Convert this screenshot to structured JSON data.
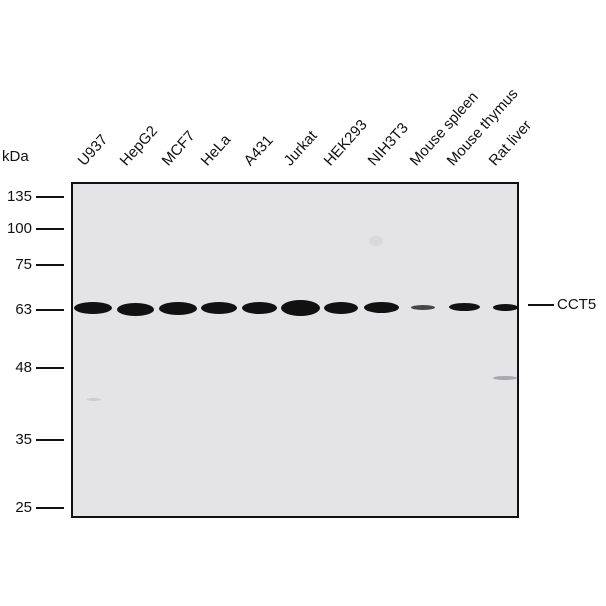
{
  "figure": {
    "unit_label": "kDa",
    "target_label": "CCT5"
  },
  "markers": [
    {
      "value": "135",
      "kda": 135
    },
    {
      "value": "100",
      "kda": 100
    },
    {
      "value": "75",
      "kda": 75
    },
    {
      "value": "63",
      "kda": 63
    },
    {
      "value": "48",
      "kda": 48
    },
    {
      "value": "35",
      "kda": 35
    },
    {
      "value": "25",
      "kda": 25
    }
  ],
  "lanes": [
    {
      "label": "U937",
      "band_intensity": 1.0
    },
    {
      "label": "HepG2",
      "band_intensity": 1.0
    },
    {
      "label": "MCF7",
      "band_intensity": 1.0
    },
    {
      "label": "HeLa",
      "band_intensity": 1.0
    },
    {
      "label": "A431",
      "band_intensity": 1.0
    },
    {
      "label": "Jurkat",
      "band_intensity": 1.0
    },
    {
      "label": "HEK293",
      "band_intensity": 1.0
    },
    {
      "label": "NIH3T3",
      "band_intensity": 0.9
    },
    {
      "label": "Mouse spleen",
      "band_intensity": 0.35
    },
    {
      "label": "Mouse thymus",
      "band_intensity": 0.75
    },
    {
      "label": "Rat liver",
      "band_intensity": 0.6
    }
  ]
}
